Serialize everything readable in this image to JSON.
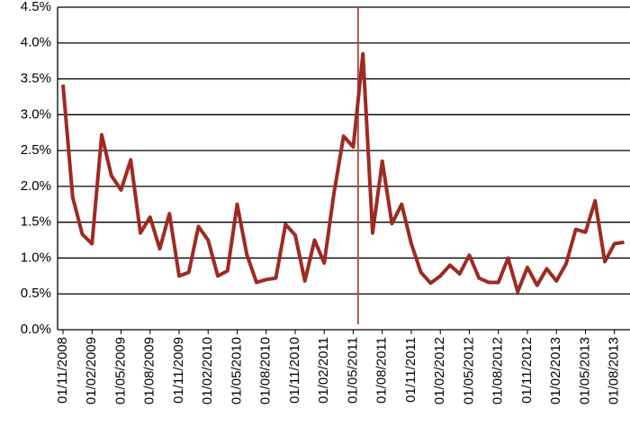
{
  "chart_data": {
    "type": "line",
    "categories": [
      "01/11/2008",
      null,
      null,
      "01/02/2009",
      null,
      null,
      "01/05/2009",
      null,
      null,
      "01/08/2009",
      null,
      null,
      "01/11/2009",
      null,
      null,
      "01/02/2010",
      null,
      null,
      "01/05/2010",
      null,
      null,
      "01/08/2010",
      null,
      null,
      "01/11/2010",
      null,
      null,
      "01/02/2011",
      null,
      null,
      "01/05/2011",
      null,
      null,
      "01/08/2011",
      null,
      null,
      "01/11/2011",
      null,
      null,
      "01/02/2012",
      null,
      null,
      "01/05/2012",
      null,
      null,
      "01/08/2012",
      null,
      null,
      "01/11/2012",
      null,
      null,
      "01/02/2013",
      null,
      null,
      "01/05/2013",
      null,
      null,
      "01/08/2013",
      null
    ],
    "values": [
      3.42,
      1.85,
      1.33,
      1.2,
      2.72,
      2.15,
      1.95,
      2.37,
      1.35,
      1.57,
      1.13,
      1.62,
      0.75,
      0.8,
      1.44,
      1.25,
      0.75,
      0.82,
      1.75,
      1.05,
      0.66,
      0.7,
      0.72,
      1.47,
      1.32,
      0.68,
      1.25,
      0.93,
      1.9,
      2.7,
      2.55,
      3.85,
      1.35,
      2.35,
      1.48,
      1.75,
      1.2,
      0.8,
      0.65,
      0.75,
      0.9,
      0.78,
      1.04,
      0.72,
      0.66,
      0.66,
      1.0,
      0.53,
      0.87,
      0.62,
      0.85,
      0.68,
      0.92,
      1.4,
      1.36,
      1.8,
      0.95,
      1.2,
      1.22
    ],
    "color": "#9e2a22",
    "ylim": [
      0,
      4.5
    ],
    "yticks": [
      {
        "value": 0,
        "label": "0.0%"
      },
      {
        "value": 0.5,
        "label": "0.5%"
      },
      {
        "value": 1,
        "label": "1.0%"
      },
      {
        "value": 1.5,
        "label": "1.5%"
      },
      {
        "value": 2,
        "label": "2.0%"
      },
      {
        "value": 2.5,
        "label": "2.5%"
      },
      {
        "value": 3,
        "label": "3.0%"
      },
      {
        "value": 3.5,
        "label": "3.5%"
      },
      {
        "value": 4,
        "label": "4.0%"
      },
      {
        "value": 4.5,
        "label": "4.5%"
      }
    ],
    "grid": true,
    "vline": {
      "x": 30.5,
      "color": "#b0524c"
    }
  }
}
